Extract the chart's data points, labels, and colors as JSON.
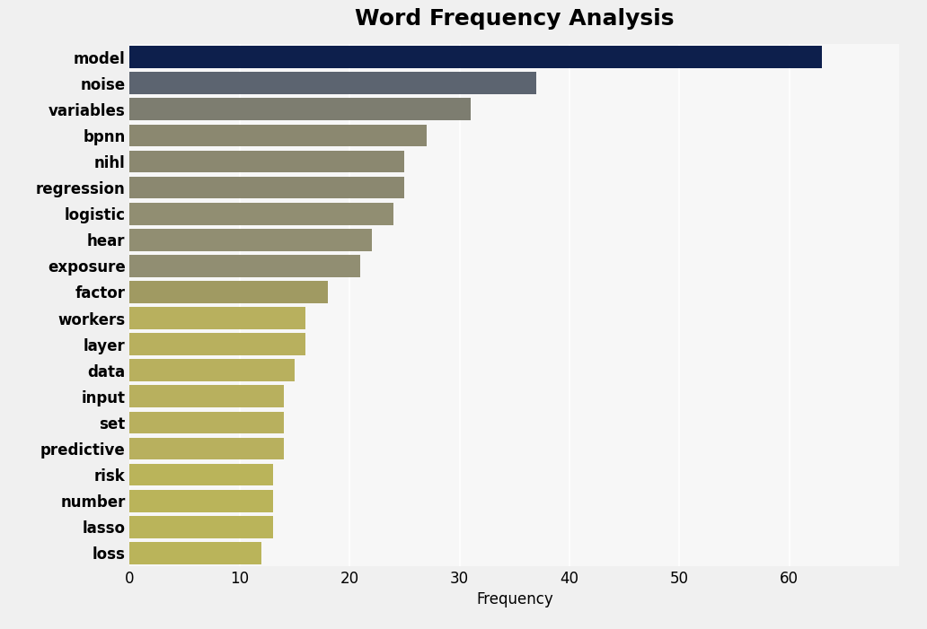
{
  "title": "Word Frequency Analysis",
  "xlabel": "Frequency",
  "categories": [
    "model",
    "noise",
    "variables",
    "bpnn",
    "nihl",
    "regression",
    "logistic",
    "hear",
    "exposure",
    "factor",
    "workers",
    "layer",
    "data",
    "input",
    "set",
    "predictive",
    "risk",
    "number",
    "lasso",
    "loss"
  ],
  "values": [
    63,
    37,
    31,
    27,
    25,
    25,
    24,
    22,
    21,
    18,
    16,
    16,
    15,
    14,
    14,
    14,
    13,
    13,
    13,
    12
  ],
  "bar_colors": [
    "#0d1f4c",
    "#5c6470",
    "#7d7d70",
    "#8b8870",
    "#8b8870",
    "#8b8870",
    "#918e72",
    "#918e72",
    "#918e72",
    "#a09a62",
    "#b8b05e",
    "#b8b05e",
    "#b8b05e",
    "#b8b05e",
    "#b8b05e",
    "#b8b05e",
    "#bab45a",
    "#bab45a",
    "#bab45a",
    "#bab45a"
  ],
  "background_color": "#f0f0f0",
  "plot_bg_color": "#f7f7f7",
  "title_fontsize": 18,
  "xlim": [
    0,
    70
  ],
  "xticks": [
    0,
    10,
    20,
    30,
    40,
    50,
    60
  ],
  "tick_fontsize": 12,
  "label_fontsize": 12,
  "bar_height": 0.85
}
